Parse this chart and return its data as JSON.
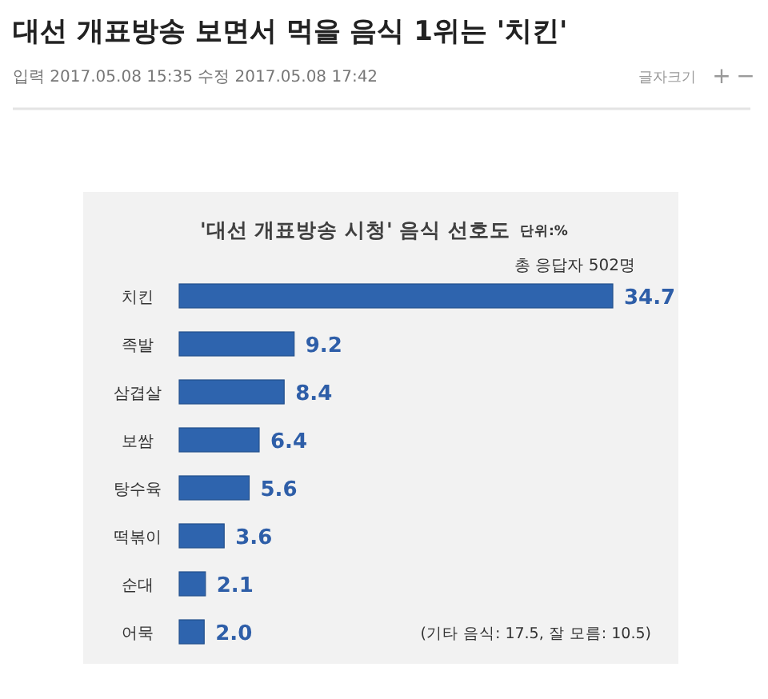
{
  "chart_data": {
    "type": "bar",
    "orientation": "horizontal",
    "title": "대선 개표방송 보면서 먹을 음식 1위는 '치킨'",
    "subtitle": "'대선 개표방송 시청' 음식 선호도",
    "categories": [
      "치킨",
      "족발",
      "삼겹살",
      "보쌈",
      "탕수육",
      "떡볶이",
      "순대",
      "어묵"
    ],
    "values": [
      34.7,
      9.2,
      8.4,
      6.4,
      5.6,
      3.6,
      2.1,
      2.0
    ],
    "value_labels": [
      "34.7",
      "9.2",
      "8.4",
      "6.4",
      "5.6",
      "3.6",
      "2.1",
      "2.0"
    ],
    "color": "#2e64ae",
    "annotations": [
      "입력 2017.05.08 15:35 수정 2017.05.08 17:42",
      "글자크기",
      "+",
      "−",
      "단위:%",
      "총 응답자 502명",
      "(기타 음식: 17.5, 잘 모름: 10.5)"
    ]
  }
}
